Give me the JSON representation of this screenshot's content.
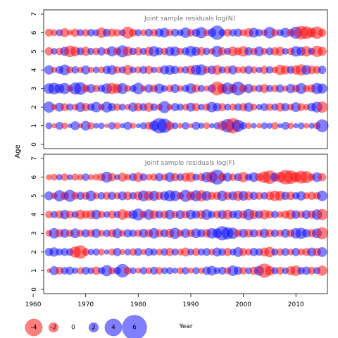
{
  "chart_data": {
    "type": "scatter",
    "shared_ylabel": "Age",
    "shared_xlabel": "Year",
    "xlim": [
      1962,
      2016
    ],
    "x_ticks": [
      1960,
      1970,
      1980,
      1990,
      2000,
      2010
    ],
    "y_ticks": [
      0,
      1,
      2,
      3,
      4,
      5,
      6,
      7
    ],
    "ylim": [
      0,
      7
    ],
    "years": [
      1963,
      1964,
      1965,
      1966,
      1967,
      1968,
      1969,
      1970,
      1971,
      1972,
      1973,
      1974,
      1975,
      1976,
      1977,
      1978,
      1979,
      1980,
      1981,
      1982,
      1983,
      1984,
      1985,
      1986,
      1987,
      1988,
      1989,
      1990,
      1991,
      1992,
      1993,
      1994,
      1995,
      1996,
      1997,
      1998,
      1999,
      2000,
      2001,
      2002,
      2003,
      2004,
      2005,
      2006,
      2007,
      2008,
      2009,
      2010,
      2011,
      2012,
      2013,
      2014,
      2015
    ],
    "ages": [
      1,
      2,
      3,
      4,
      5,
      6
    ],
    "colors": {
      "positive": "#0000ff",
      "negative": "#ff0000"
    },
    "legend": {
      "position": "bottom-left",
      "values": [
        -4,
        -2,
        0,
        2,
        4,
        6
      ],
      "labels": [
        "-4",
        "-2",
        "0",
        "2",
        "4",
        "6"
      ]
    },
    "panels": [
      {
        "title": "Joint sample residuals log(N)",
        "residuals": {
          "1": [
            1.2,
            -0.8,
            1.5,
            -1.1,
            0.6,
            1.8,
            -0.7,
            2.0,
            -1.3,
            0.9,
            1.1,
            -0.6,
            1.4,
            -1.2,
            0.8,
            1.6,
            -1.0,
            0.7,
            1.3,
            -1.5,
            2.1,
            3.5,
            3.2,
            -1.8,
            1.2,
            -0.9,
            1.4,
            -0.7,
            1.6,
            1.0,
            -1.2,
            0.8,
            1.3,
            -2.0,
            3.0,
            -3.5,
            2.6,
            1.4,
            -1.1,
            0.9,
            -0.8,
            1.2,
            1.0,
            -1.4,
            0.7,
            1.5,
            -1.1,
            0.8,
            1.2,
            -0.9,
            1.0,
            -1.3,
            2.8
          ],
          "2": [
            2.4,
            -1.0,
            1.8,
            -1.5,
            1.3,
            -1.2,
            2.0,
            -1.6,
            1.4,
            2.2,
            -1.1,
            2.3,
            1.6,
            -1.4,
            1.2,
            -1.0,
            1.9,
            -1.7,
            1.5,
            -1.9,
            1.4,
            -1.2,
            2.6,
            -1.0,
            1.6,
            1.3,
            -1.2,
            1.8,
            -1.6,
            1.1,
            -1.4,
            2.2,
            1.7,
            -1.5,
            1.2,
            -1.3,
            1.4,
            -1.6,
            1.9,
            -1.2,
            1.0,
            1.5,
            -1.4,
            1.3,
            -1.8,
            1.6,
            -1.2,
            2.0,
            -1.5,
            -1.1,
            1.7,
            2.3,
            -2.4
          ],
          "3": [
            2.2,
            2.5,
            2.0,
            2.4,
            -1.2,
            2.6,
            2.8,
            -1.5,
            1.8,
            -1.3,
            1.4,
            2.2,
            -2.4,
            -2.0,
            2.3,
            -1.2,
            1.3,
            2.5,
            -1.0,
            1.7,
            -1.5,
            2.1,
            1.2,
            -1.4,
            1.8,
            -1.1,
            1.4,
            2.2,
            -1.6,
            1.3,
            -1.0,
            1.6,
            -3.1,
            -2.0,
            2.6,
            -1.8,
            3.1,
            -1.6,
            1.9,
            -1.2,
            1.4,
            -1.8,
            1.3,
            -1.4,
            1.6,
            -1.0,
            1.9,
            -1.5,
            2.3,
            -1.3,
            -1.6,
            2.4,
            2.1
          ],
          "4": [
            1.9,
            -1.0,
            1.5,
            2.3,
            -1.3,
            1.4,
            -1.1,
            1.8,
            -1.0,
            1.2,
            -1.2,
            1.6,
            2.0,
            -1.4,
            1.3,
            -2.1,
            1.2,
            -1.3,
            1.5,
            -1.6,
            1.1,
            -1.2,
            1.8,
            2.0,
            1.6,
            -1.3,
            1.4,
            -1.8,
            2.2,
            2.4,
            -1.4,
            1.7,
            -2.0,
            1.3,
            -1.5,
            1.8,
            -1.2,
            -1.4,
            1.6,
            -1.3,
            1.1,
            -1.6,
            1.4,
            -1.2,
            -2.2,
            -1.8,
            1.5,
            -1.9,
            -2.4,
            2.0,
            -1.7,
            -1.5,
            1.6
          ],
          "5": [
            -1.6,
            1.2,
            -1.4,
            1.8,
            -2.5,
            -2.0,
            1.5,
            -1.8,
            1.3,
            -1.4,
            1.6,
            -1.2,
            2.1,
            -1.5,
            2.6,
            -2.0,
            1.4,
            -1.6,
            1.3,
            -1.8,
            2.2,
            1.5,
            -1.4,
            1.9,
            2.0,
            -1.3,
            1.5,
            2.3,
            1.8,
            -1.7,
            1.4,
            -1.2,
            2.4,
            -1.6,
            1.3,
            -2.0,
            -1.5,
            -2.2,
            1.6,
            -1.4,
            2.0,
            -1.2,
            1.5,
            -1.6,
            -1.8,
            1.2,
            -1.4,
            2.2,
            1.8,
            -2.2,
            1.3,
            -2.4,
            -1.8
          ],
          "6": [
            -1.5,
            -1.2,
            1.3,
            -1.8,
            -1.0,
            -1.6,
            1.3,
            -1.4,
            1.4,
            1.2,
            -2.2,
            1.5,
            -1.6,
            -1.4,
            1.2,
            -2.6,
            -1.5,
            1.3,
            -1.2,
            1.5,
            -1.4,
            1.7,
            2.0,
            -1.3,
            1.5,
            1.2,
            2.2,
            -1.4,
            1.6,
            2.4,
            -1.2,
            1.7,
            3.2,
            1.3,
            -1.5,
            1.4,
            1.6,
            -1.3,
            -1.8,
            2.0,
            1.4,
            -1.2,
            2.5,
            -1.4,
            1.3,
            2.0,
            -1.5,
            2.6,
            -3.0,
            -2.8,
            -2.0,
            -2.7,
            -1.6
          ]
        }
      },
      {
        "title": "Joint sample residuals log(F)",
        "residuals": {
          "1": [
            -0.6,
            1.8,
            -1.5,
            1.4,
            1.6,
            1.1,
            -1.3,
            1.5,
            1.2,
            -1.6,
            1.3,
            2.4,
            -1.3,
            1.4,
            3.0,
            -1.5,
            1.2,
            -1.0,
            1.4,
            -1.2,
            1.5,
            -1.4,
            1.2,
            1.3,
            1.0,
            -1.2,
            1.4,
            -1.0,
            1.3,
            -1.1,
            1.6,
            2.0,
            1.2,
            1.5,
            -1.3,
            2.2,
            1.6,
            -1.4,
            1.2,
            -1.6,
            2.0,
            -3.2,
            -2.0,
            1.3,
            -1.5,
            1.2,
            -1.8,
            -2.2,
            1.4,
            1.6,
            -1.5,
            1.3,
            -2.1
          ],
          "2": [
            1.6,
            1.9,
            1.3,
            1.5,
            1.4,
            -2.4,
            -3.0,
            -1.4,
            1.1,
            1.3,
            -1.2,
            0.8,
            -1.3,
            1.6,
            -1.0,
            1.2,
            -1.4,
            1.5,
            -1.0,
            1.6,
            1.3,
            -1.2,
            1.4,
            -1.6,
            1.3,
            -1.2,
            -1.8,
            1.2,
            -1.5,
            1.3,
            1.5,
            -1.2,
            1.8,
            1.4,
            -1.6,
            1.2,
            2.0,
            -1.5,
            -1.3,
            1.6,
            1.4,
            -1.8,
            -2.2,
            1.3,
            -1.4,
            1.5,
            -1.2,
            1.6,
            -1.3,
            -1.5,
            1.8,
            -1.6,
            2.0
          ],
          "3": [
            -1.2,
            2.2,
            -1.6,
            1.8,
            -1.4,
            2.0,
            -1.3,
            1.6,
            -1.5,
            1.9,
            -1.2,
            1.4,
            -1.6,
            2.0,
            -1.2,
            1.6,
            1.4,
            -1.4,
            1.8,
            -1.6,
            2.2,
            -1.5,
            1.6,
            -1.8,
            2.4,
            -1.3,
            1.9,
            -1.5,
            2.0,
            1.6,
            -1.7,
            2.2,
            2.0,
            3.2,
            2.6,
            2.4,
            -1.5,
            1.8,
            -1.7,
            1.6,
            -1.4,
            1.9,
            -1.6,
            1.5,
            -1.3,
            1.8,
            -1.5,
            2.2,
            2.4,
            1.7,
            -1.6,
            2.0,
            -2.6
          ],
          "4": [
            -1.4,
            1.3,
            -1.6,
            1.9,
            -1.5,
            1.3,
            -2.0,
            -1.6,
            -1.8,
            2.0,
            -1.4,
            1.2,
            -1.6,
            1.3,
            -2.2,
            -1.5,
            1.8,
            2.6,
            -1.4,
            2.2,
            -1.8,
            1.5,
            -1.6,
            2.0,
            -1.3,
            1.8,
            -1.5,
            2.0,
            1.6,
            -1.8,
            2.2,
            1.4,
            -1.6,
            1.8,
            -2.0,
            1.5,
            1.8,
            -1.6,
            2.4,
            -1.8,
            1.6,
            -2.0,
            -1.5,
            1.4,
            -1.2,
            -1.6,
            -2.0,
            1.7,
            -1.4,
            1.8,
            -1.6,
            2.2,
            -2.4
          ],
          "5": [
            1.8,
            -1.2,
            2.4,
            -1.6,
            2.6,
            -1.4,
            1.6,
            -1.5,
            2.2,
            -1.2,
            1.4,
            -1.5,
            1.6,
            -1.3,
            1.8,
            -1.7,
            1.4,
            -1.8,
            2.3,
            -2.0,
            2.1,
            -1.6,
            1.9,
            2.4,
            2.2,
            -1.4,
            2.6,
            -1.8,
            2.4,
            -2.4,
            2.0,
            -1.6,
            -1.6,
            2.2,
            -1.6,
            1.8,
            -2.1,
            2.0,
            -1.8,
            1.6,
            -1.5,
            1.4,
            -1.8,
            -2.2,
            -2.0,
            1.6,
            -1.7,
            1.4,
            1.9,
            -1.3,
            -1.6,
            -1.4,
            2.2
          ],
          "6": [
            -1.0,
            -1.2,
            1.1,
            -1.4,
            1.0,
            -1.3,
            -1.1,
            1.4,
            -1.0,
            -1.2,
            -1.5,
            2.3,
            -1.6,
            1.0,
            -1.8,
            -1.2,
            1.5,
            -2.0,
            1.4,
            -1.2,
            -1.4,
            1.6,
            -1.3,
            2.0,
            -1.6,
            1.4,
            -1.8,
            -2.0,
            1.3,
            -1.5,
            2.2,
            -2.4,
            3.4,
            -1.6,
            1.8,
            -1.4,
            1.5,
            -2.2,
            1.3,
            2.0,
            -1.6,
            -2.5,
            -3.0,
            1.8,
            -2.2,
            -3.3,
            -3.0,
            -2.2,
            -2.8,
            -2.6,
            -1.4,
            2.0,
            -1.6
          ]
        }
      }
    ]
  }
}
